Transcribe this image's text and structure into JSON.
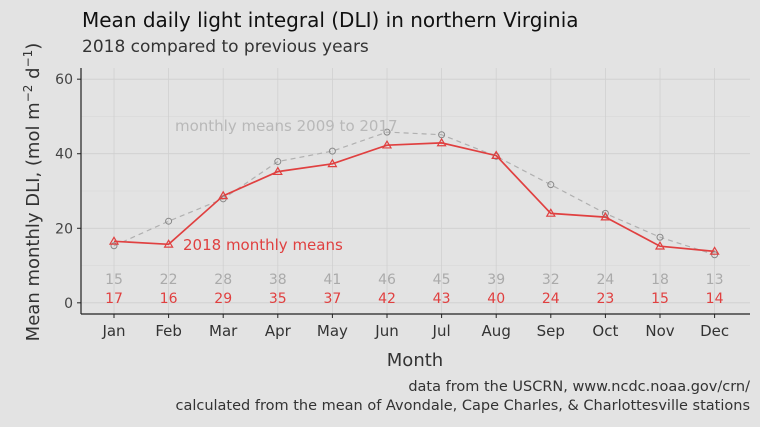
{
  "chart_data": {
    "type": "line",
    "title": "Mean daily light integral (DLI) in northern Virginia",
    "subtitle": "2018 compared to previous years",
    "xlabel": "Month",
    "ylabel_main": "Mean monthly DLI, (mol m",
    "ylabel_sup1": "−2",
    "ylabel_mid": " d",
    "ylabel_sup2": "−1",
    "ylabel_end": ")",
    "ylim": [
      -3,
      63
    ],
    "yticks": [
      0,
      20,
      40,
      60
    ],
    "categories": [
      "Jan",
      "Feb",
      "Mar",
      "Apr",
      "May",
      "Jun",
      "Jul",
      "Aug",
      "Sep",
      "Oct",
      "Nov",
      "Dec"
    ],
    "grid": true,
    "series": [
      {
        "name": "monthly means 2009 to 2017",
        "values": [
          15.3,
          21.9,
          27.9,
          37.9,
          40.7,
          45.8,
          45.1,
          39.3,
          31.7,
          24.0,
          17.6,
          12.9
        ],
        "labels": [
          "15",
          "22",
          "28",
          "38",
          "41",
          "46",
          "45",
          "39",
          "32",
          "24",
          "18",
          "13"
        ],
        "color": "#b0b0b0",
        "marker": "circle",
        "linestyle": "dashed"
      },
      {
        "name": "2018 monthly means",
        "values": [
          16.5,
          15.7,
          28.7,
          35.2,
          37.3,
          42.3,
          42.9,
          39.5,
          24.0,
          23.0,
          15.2,
          13.8
        ],
        "labels": [
          "17",
          "16",
          "29",
          "35",
          "37",
          "42",
          "43",
          "40",
          "24",
          "23",
          "15",
          "14"
        ],
        "color": "#e04040",
        "marker": "triangle",
        "linestyle": "solid"
      }
    ]
  },
  "caption_line1": "data from the USCRN, www.ncdc.noaa.gov/crn/",
  "caption_line2": "calculated from the mean of Avondale, Cape Charles, & Charlottesville stations"
}
